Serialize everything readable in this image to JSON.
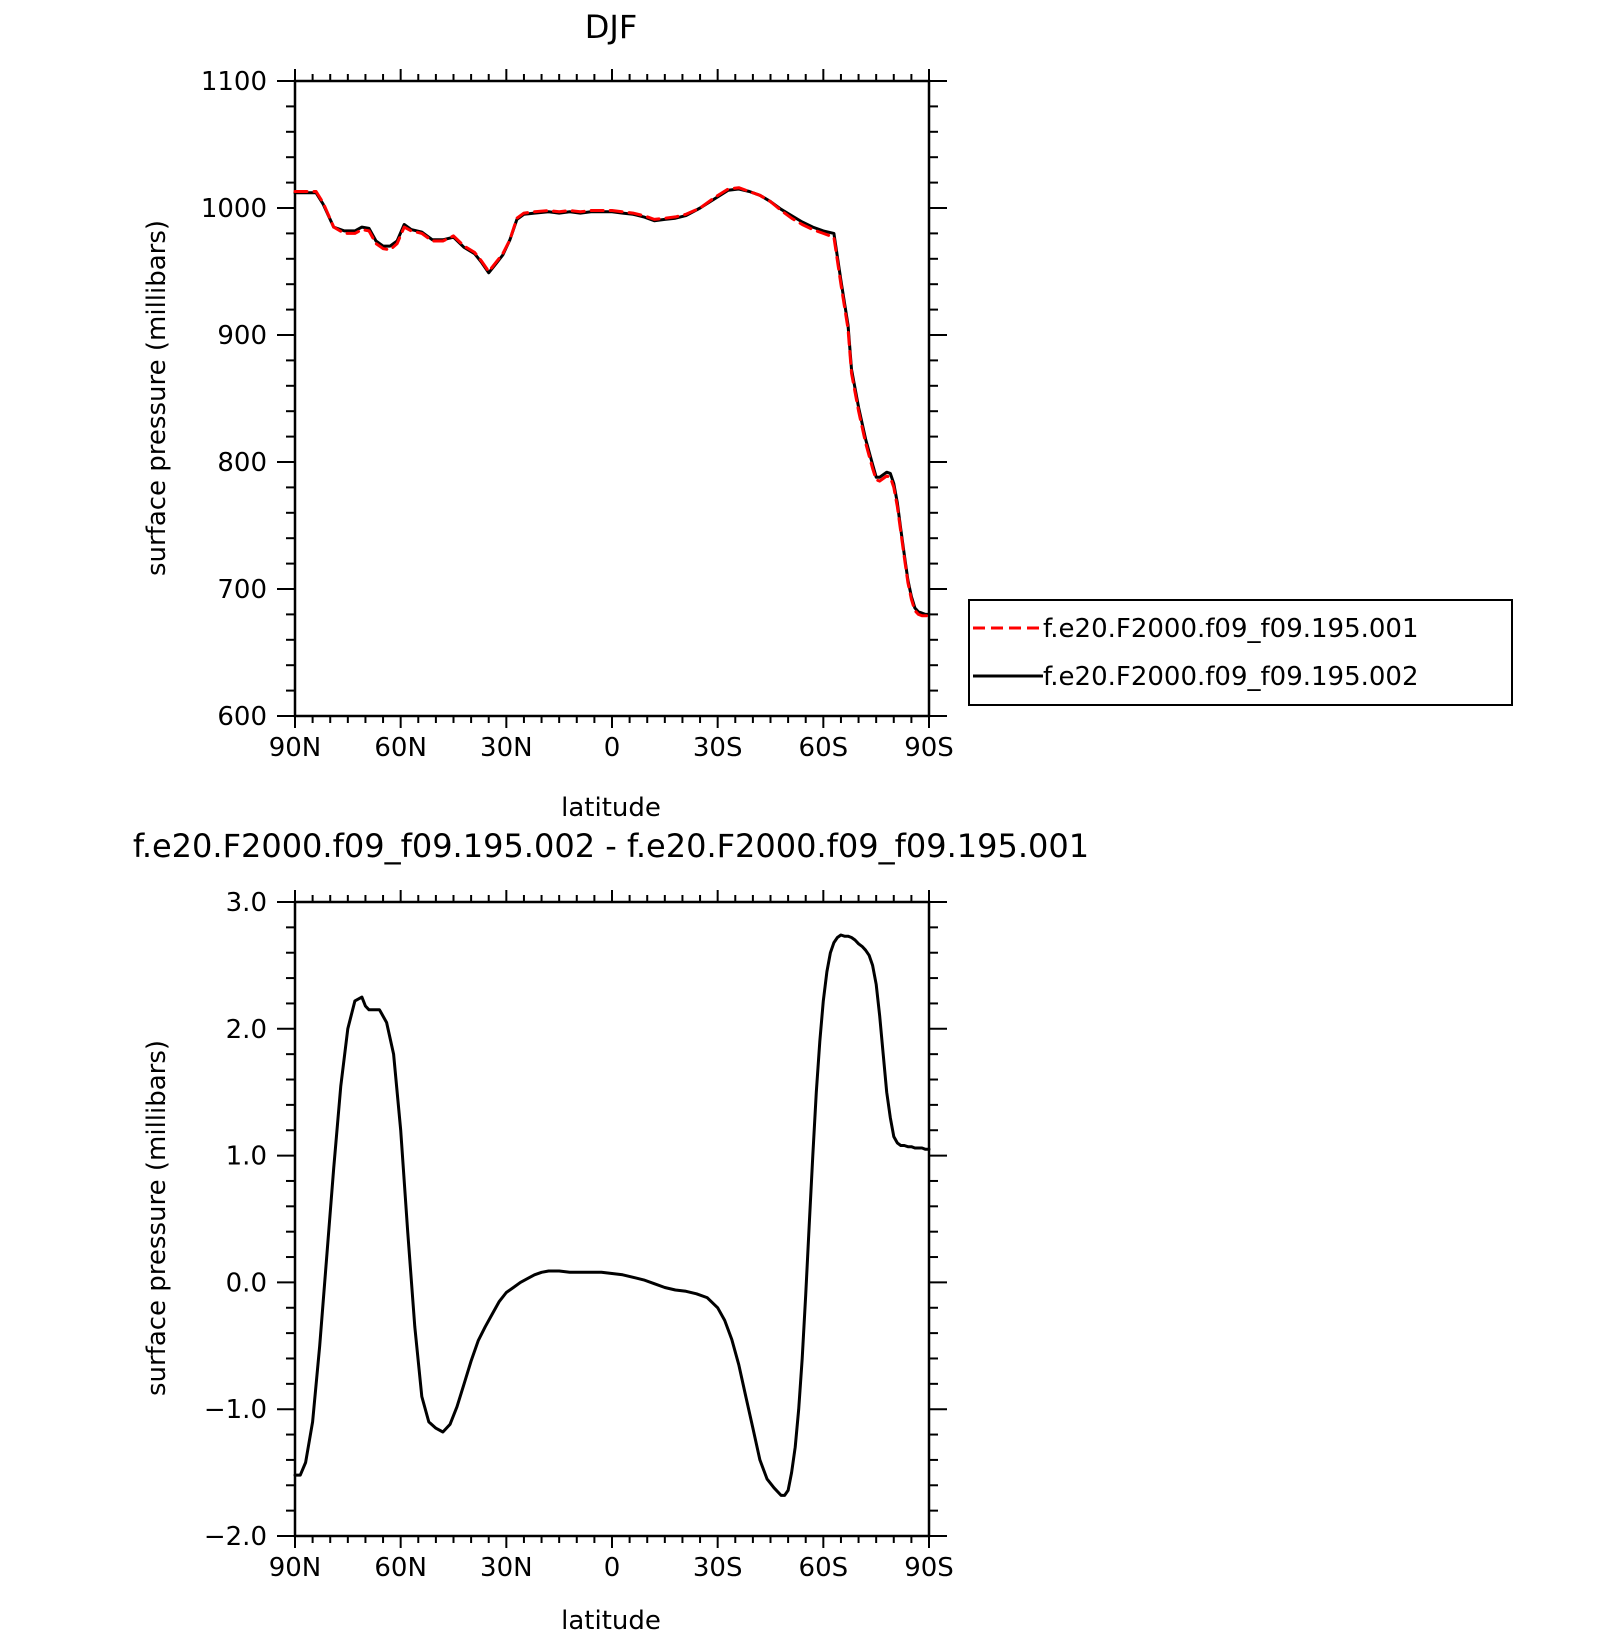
{
  "chart_data": [
    {
      "type": "line",
      "title": "DJF",
      "xlabel": "latitude",
      "ylabel": "surface pressure (millibars)",
      "xlim": [
        90,
        -90
      ],
      "ylim": [
        600,
        1100
      ],
      "x_ticks": [
        90,
        60,
        30,
        0,
        -30,
        -60,
        -90
      ],
      "x_tick_labels": [
        "90N",
        "60N",
        "30N",
        "0",
        "30S",
        "60S",
        "90S"
      ],
      "y_ticks": [
        600,
        700,
        800,
        900,
        1000,
        1100
      ],
      "y_tick_labels": [
        "600",
        "700",
        "800",
        "900",
        "1000",
        "1100"
      ],
      "legend_position": "right",
      "series": [
        {
          "name": "f.e20.F2000.f09_f09.195.001",
          "color": "#ff0000",
          "dashed": true,
          "x": [
            90,
            87,
            84,
            82,
            79,
            76,
            73,
            71,
            69,
            67,
            65,
            63,
            61,
            59,
            57,
            54,
            51,
            48,
            45,
            42,
            39,
            37,
            35,
            33,
            31,
            29,
            27,
            25,
            22,
            18,
            15,
            12,
            9,
            6,
            3,
            0,
            -3,
            -6,
            -9,
            -12,
            -15,
            -18,
            -21,
            -25,
            -29,
            -33,
            -36,
            -39,
            -42,
            -45,
            -48,
            -51,
            -54,
            -57,
            -60,
            -63,
            -65,
            -67,
            -68,
            -70,
            -72,
            -74,
            -75,
            -76,
            -77,
            -78,
            -79,
            -80,
            -81,
            -82,
            -83,
            -84,
            -85,
            -86,
            -87,
            -88,
            -89,
            -90
          ],
          "y": [
            1013,
            1013,
            1013,
            1004,
            985,
            980,
            980,
            983,
            982,
            972,
            968,
            967,
            972,
            985,
            982,
            980,
            974,
            974,
            978,
            970,
            965,
            958,
            950,
            957,
            964,
            975,
            992,
            996,
            997,
            998,
            997,
            998,
            997,
            998,
            998,
            998,
            997,
            996,
            994,
            991,
            992,
            993,
            995,
            1000,
            1008,
            1015,
            1016,
            1013,
            1010,
            1005,
            998,
            992,
            987,
            983,
            980,
            977,
            940,
            905,
            870,
            840,
            815,
            795,
            786,
            785,
            787,
            789,
            788,
            780,
            765,
            745,
            725,
            705,
            692,
            683,
            680,
            679,
            679,
            679
          ]
        },
        {
          "name": "f.e20.F2000.f09_f09.195.002",
          "color": "#000000",
          "dashed": false,
          "x": [
            90,
            87,
            84,
            82,
            79,
            76,
            73,
            71,
            69,
            67,
            65,
            63,
            61,
            59,
            57,
            54,
            51,
            48,
            45,
            42,
            39,
            37,
            35,
            33,
            31,
            29,
            27,
            25,
            22,
            18,
            15,
            12,
            9,
            6,
            3,
            0,
            -3,
            -6,
            -9,
            -12,
            -15,
            -18,
            -21,
            -25,
            -29,
            -33,
            -36,
            -39,
            -42,
            -45,
            -48,
            -51,
            -54,
            -57,
            -60,
            -63,
            -65,
            -67,
            -68,
            -70,
            -72,
            -74,
            -75,
            -76,
            -77,
            -78,
            -79,
            -80,
            -81,
            -82,
            -83,
            -84,
            -85,
            -86,
            -87,
            -88,
            -89,
            -90
          ],
          "y": [
            1012,
            1012,
            1012,
            1003,
            985,
            982,
            982,
            985,
            984,
            974,
            970,
            970,
            974,
            987,
            983,
            981,
            975,
            975,
            977,
            969,
            964,
            957,
            949,
            956,
            963,
            975,
            991,
            995,
            996,
            997,
            996,
            997,
            996,
            997,
            997,
            997,
            996,
            995,
            993,
            990,
            991,
            992,
            994,
            1000,
            1007,
            1014,
            1015,
            1013,
            1010,
            1005,
            999,
            994,
            989,
            985,
            982,
            980,
            943,
            908,
            873,
            843,
            818,
            798,
            788,
            788,
            790,
            792,
            791,
            783,
            768,
            747,
            727,
            707,
            694,
            685,
            682,
            681,
            680,
            680
          ]
        }
      ]
    },
    {
      "type": "line",
      "title": "f.e20.F2000.f09_f09.195.002 - f.e20.F2000.f09_f09.195.001",
      "xlabel": "latitude",
      "ylabel": "surface pressure (millibars)",
      "xlim": [
        90,
        -90
      ],
      "ylim": [
        -2.0,
        3.0
      ],
      "x_ticks": [
        90,
        60,
        30,
        0,
        -30,
        -60,
        -90
      ],
      "x_tick_labels": [
        "90N",
        "60N",
        "30N",
        "0",
        "30S",
        "60S",
        "90S"
      ],
      "y_ticks": [
        -2.0,
        -1.0,
        0.0,
        1.0,
        2.0,
        3.0
      ],
      "y_tick_labels": [
        "−2.0",
        "−1.0",
        "0.0",
        "1.0",
        "2.0",
        "3.0"
      ],
      "series": [
        {
          "color": "#000000",
          "dashed": false,
          "x": [
            90,
            88.5,
            87,
            85,
            83,
            81,
            79,
            77,
            75,
            73,
            71,
            70,
            69,
            68,
            66,
            64,
            62,
            60,
            58,
            56,
            54,
            52,
            50,
            48,
            46,
            44,
            42,
            40,
            38,
            36,
            34,
            32,
            30,
            28,
            26,
            24,
            22,
            20,
            18,
            15,
            12,
            9,
            6,
            3,
            0,
            -3,
            -6,
            -9,
            -12,
            -15,
            -18,
            -21,
            -24,
            -27,
            -30,
            -32,
            -34,
            -36,
            -38,
            -40,
            -42,
            -44,
            -46,
            -48,
            -49,
            -50,
            -51,
            -52,
            -53,
            -54,
            -55,
            -56,
            -57,
            -58,
            -59,
            -60,
            -61,
            -62,
            -63,
            -64,
            -65,
            -66,
            -67,
            -68,
            -69,
            -70,
            -71,
            -72,
            -73,
            -74,
            -75,
            -76,
            -77,
            -78,
            -79,
            -80,
            -81,
            -82,
            -83,
            -84,
            -85,
            -86,
            -87,
            -88,
            -89,
            -90
          ],
          "y": [
            -1.52,
            -1.52,
            -1.42,
            -1.1,
            -0.5,
            0.2,
            0.9,
            1.55,
            2.0,
            2.22,
            2.25,
            2.18,
            2.15,
            2.15,
            2.15,
            2.05,
            1.8,
            1.2,
            0.4,
            -0.35,
            -0.9,
            -1.1,
            -1.15,
            -1.18,
            -1.12,
            -0.98,
            -0.8,
            -0.62,
            -0.46,
            -0.35,
            -0.25,
            -0.15,
            -0.08,
            -0.04,
            0.0,
            0.03,
            0.06,
            0.08,
            0.09,
            0.09,
            0.08,
            0.08,
            0.08,
            0.08,
            0.07,
            0.06,
            0.04,
            0.02,
            -0.01,
            -0.04,
            -0.06,
            -0.07,
            -0.09,
            -0.12,
            -0.2,
            -0.3,
            -0.45,
            -0.65,
            -0.9,
            -1.15,
            -1.4,
            -1.55,
            -1.62,
            -1.68,
            -1.68,
            -1.64,
            -1.5,
            -1.3,
            -1.0,
            -0.6,
            -0.1,
            0.45,
            1.0,
            1.5,
            1.9,
            2.22,
            2.45,
            2.6,
            2.68,
            2.72,
            2.74,
            2.73,
            2.73,
            2.72,
            2.7,
            2.67,
            2.65,
            2.62,
            2.58,
            2.5,
            2.35,
            2.1,
            1.8,
            1.5,
            1.3,
            1.15,
            1.1,
            1.08,
            1.08,
            1.07,
            1.07,
            1.06,
            1.06,
            1.06,
            1.05,
            1.05
          ]
        }
      ]
    }
  ]
}
